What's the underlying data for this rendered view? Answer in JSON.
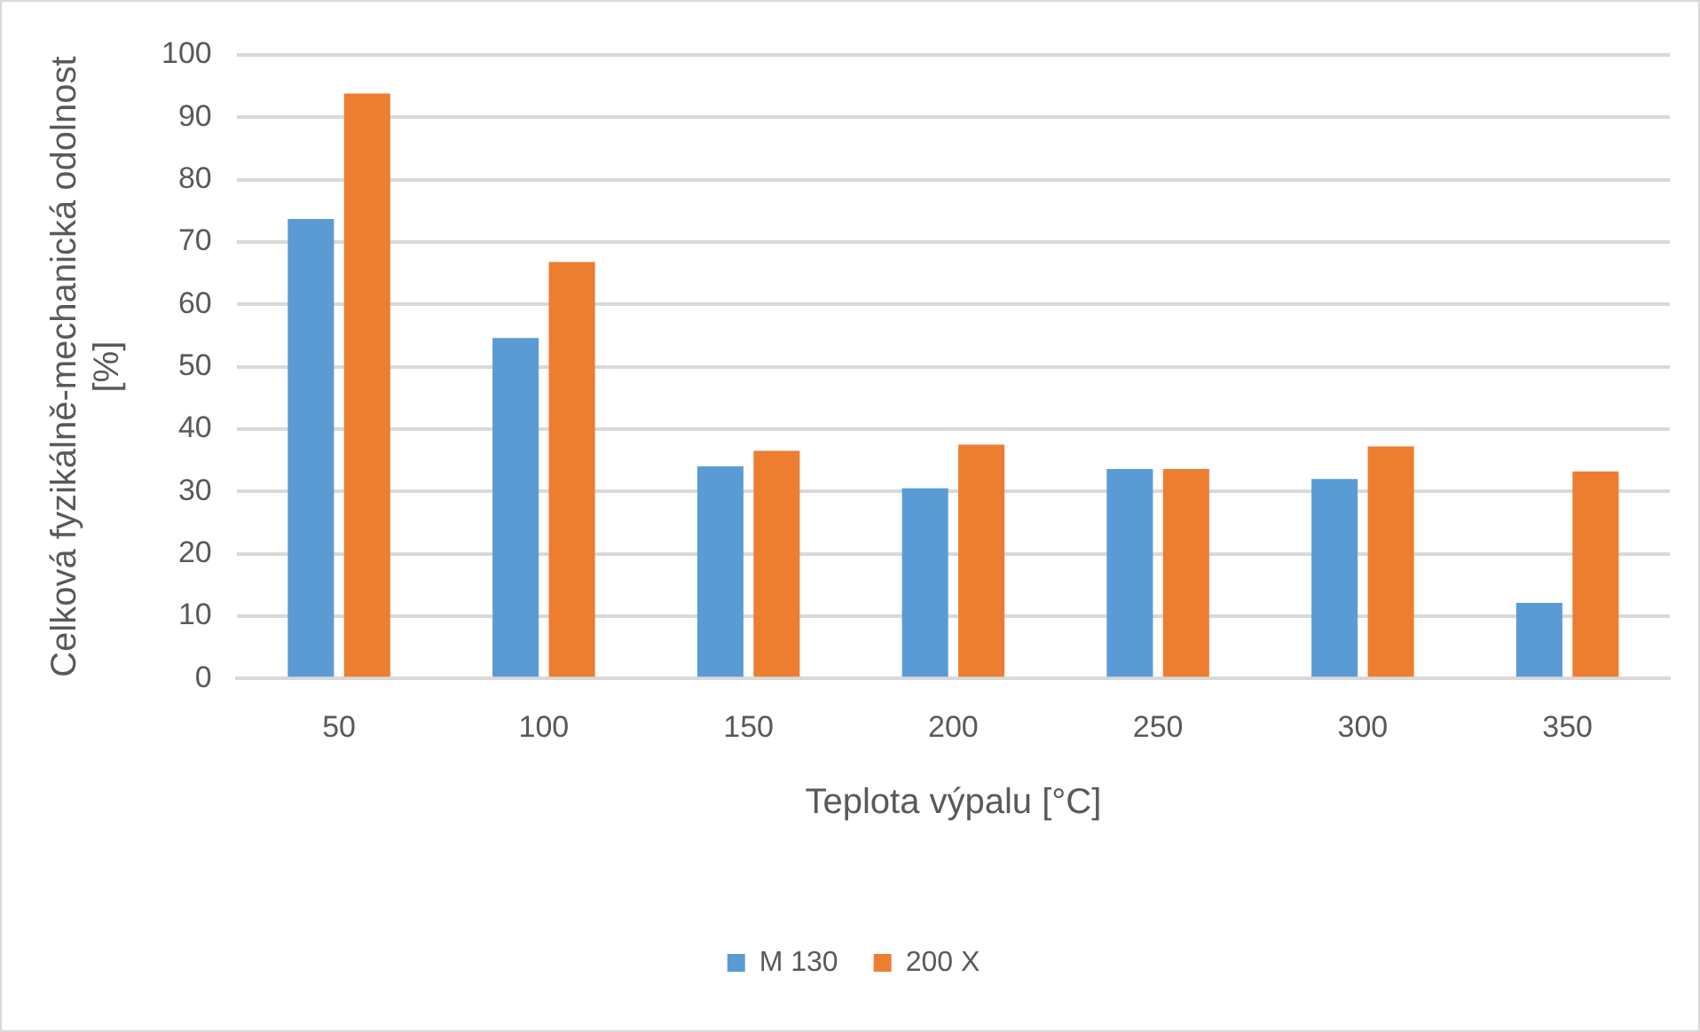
{
  "chart_data": {
    "type": "bar",
    "xlabel": "Teplota výpalu [°C]",
    "ylabel": "Celková fyzikálně-mechanická odolnost [%]",
    "categories": [
      "50",
      "100",
      "150",
      "200",
      "250",
      "300",
      "350"
    ],
    "series": [
      {
        "name": "M 130",
        "color": "#5b9bd5",
        "values": [
          73.7,
          54.6,
          34,
          30.5,
          33.6,
          32,
          12.1
        ]
      },
      {
        "name": "200 X",
        "color": "#ed7d31",
        "values": [
          93.8,
          66.8,
          36.5,
          37.5,
          33.6,
          37.2,
          33.2
        ]
      }
    ],
    "ylim": [
      0,
      100
    ],
    "yticks": [
      0,
      10,
      20,
      30,
      40,
      50,
      60,
      70,
      80,
      90,
      100
    ],
    "grid": "y",
    "legend": "bottom"
  }
}
